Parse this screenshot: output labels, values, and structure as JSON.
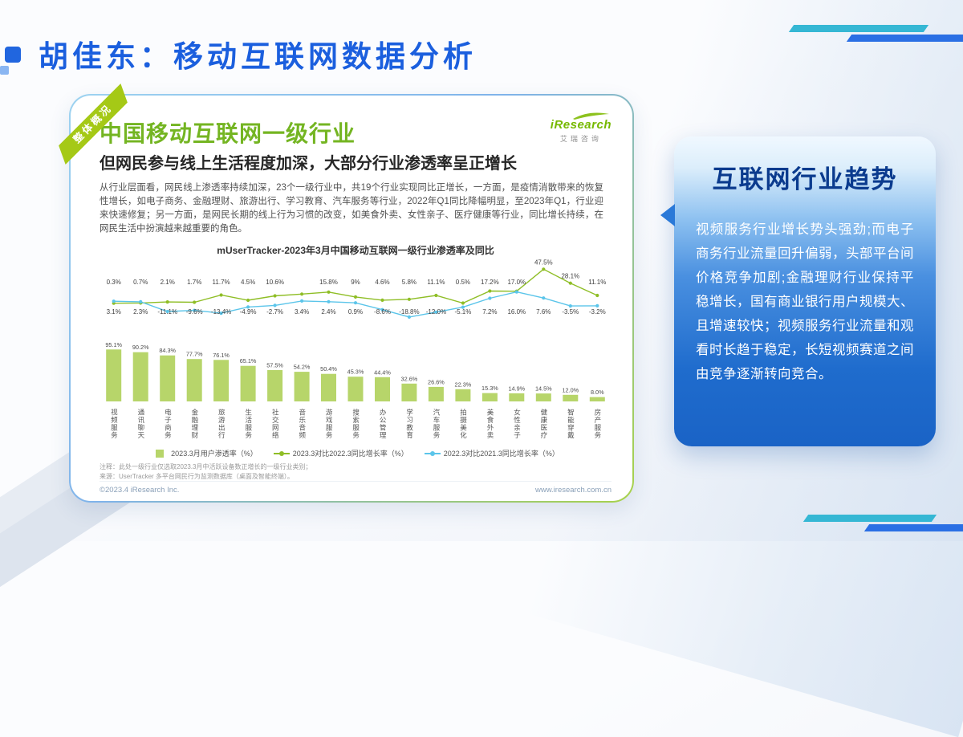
{
  "page": {
    "title": "胡佳东：移动互联网数据分析"
  },
  "colors": {
    "title_blue": "#1b5fde",
    "brand_green": "#74b522",
    "deco_teal": "#35b7d4",
    "deco_blue": "#2a6fe4",
    "bar_green": "#b7d56a",
    "line_green": "#8fbe26",
    "line_blue": "#5bc5ea"
  },
  "report_card": {
    "ribbon": "整体概况",
    "logo": {
      "brand": "iResearch",
      "cn": "艾瑞咨询"
    },
    "heading": "中国移动互联网一级行业",
    "subheading": "但网民参与线上生活程度加深，大部分行业渗透率呈正增长",
    "body": "从行业层面看，网民线上渗透率持续加深，23个一级行业中，共19个行业实现同比正增长，一方面，是疫情消散带来的恢复性增长，如电子商务、金融理财、旅游出行、学习教育、汽车服务等行业，2022年Q1同比降幅明显，至2023年Q1，行业迎来快速修复；另一方面，是网民长期的线上行为习惯的改变，如美食外卖、女性亲子、医疗健康等行业，同比增长持续，在网民生活中扮演越来越重要的角色。",
    "footnote1": "注释：此处一级行业仅选取2023.3月中活跃设备数正增长的一级行业类别；",
    "footnote2": "来源：UserTracker 多平台网民行为监测数据库（桌面及智能终端）。",
    "copyright": "©2023.4 iResearch Inc.",
    "website": "www.iresearch.com.cn"
  },
  "chart_data": {
    "type": "bar+line",
    "title": "mUserTracker-2023年3月中国移动互联网一级行业渗透率及同比",
    "categories": [
      "视频服务",
      "通讯聊天",
      "电子商务",
      "金融理财",
      "旅游出行",
      "生活服务",
      "社交网络",
      "音乐音频",
      "游戏服务",
      "搜索服务",
      "办公管理",
      "学习教育",
      "汽车服务",
      "拍摄美化",
      "美食外卖",
      "女性亲子",
      "健康医疗",
      "智能穿戴",
      "房产服务"
    ],
    "bar_axis_range": [
      0,
      100
    ],
    "line_axis_range": [
      -25,
      50
    ],
    "legend_position": "bottom",
    "series": [
      {
        "name": "2023.3月用户渗透率（%）",
        "type": "bar",
        "color": "#b7d56a",
        "values": [
          95.1,
          90.2,
          84.3,
          77.7,
          76.1,
          65.1,
          57.5,
          54.2,
          50.4,
          45.3,
          44.4,
          32.6,
          26.6,
          22.3,
          15.3,
          14.9,
          14.5,
          12.0,
          8.0
        ],
        "labels": [
          "95.1%",
          "90.2%",
          "84.3%",
          "77.7%",
          "76.1%",
          "65.1%",
          "57.5%",
          "54.2%",
          "50.4%",
          "45.3%",
          "44.4%",
          "32.6%",
          "26.6%",
          "22.3%",
          "15.3%",
          "14.9%",
          "14.5%",
          "12.0%",
          "8.0%"
        ]
      },
      {
        "name": "2023.3对比2022.3同比增长率（%）",
        "type": "line",
        "color": "#8fbe26",
        "values": [
          0.3,
          0.7,
          2.1,
          1.7,
          11.7,
          4.5,
          10.6,
          13.0,
          15.8,
          9.0,
          4.6,
          5.8,
          11.1,
          0.5,
          17.2,
          17.0,
          47.5,
          28.1,
          11.1
        ],
        "labels": [
          "0.3%",
          "0.7%",
          "2.1%",
          "1.7%",
          "11.7%",
          "4.5%",
          "10.6%",
          "",
          "15.8%",
          "9%",
          "4.6%",
          "5.8%",
          "11.1%",
          "0.5%",
          "17.2%",
          "17.0%",
          "47.5%",
          "28.1%",
          "11.1%"
        ]
      },
      {
        "name": "2022.3对比2021.3同比增长率（%）",
        "type": "line",
        "color": "#5bc5ea",
        "values": [
          3.1,
          2.3,
          -11.1,
          -9.6,
          -13.4,
          -4.9,
          -2.7,
          3.4,
          2.4,
          0.9,
          -8.6,
          -18.8,
          -12.0,
          -5.1,
          7.2,
          16.0,
          7.6,
          -3.5,
          -3.2
        ],
        "labels": [
          "3.1%",
          "2.3%",
          "-11.1%",
          "-9.6%",
          "-13.4%",
          "-4.9%",
          "-2.7%",
          "3.4%",
          "2.4%",
          "0.9%",
          "-8.6%",
          "-18.8%",
          "-12.0%",
          "-5.1%",
          "7.2%",
          "16.0%",
          "7.6%",
          "-3.5%",
          "-3.2%"
        ]
      }
    ]
  },
  "trend_card": {
    "title": "互联网行业趋势",
    "body": "视频服务行业增长势头强劲;而电子商务行业流量回升偏弱，头部平台间价格竞争加剧;金融理财行业保持平稳增长，国有商业银行用户规模大、且增速较快；视频服务行业流量和观看时长趋于稳定，长短视频赛道之间由竞争逐渐转向竞合。"
  }
}
